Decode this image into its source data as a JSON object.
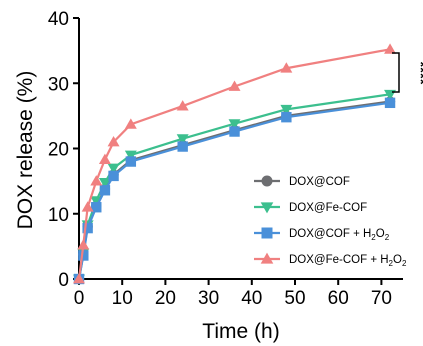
{
  "chart_data": {
    "type": "line",
    "xlabel": "Time (h)",
    "ylabel": "DOX release (%)",
    "xlim": [
      0,
      75
    ],
    "ylim": [
      0,
      40
    ],
    "xticks": [
      0,
      10,
      20,
      30,
      40,
      50,
      60,
      70
    ],
    "yticks": [
      0,
      10,
      20,
      30,
      40
    ],
    "grid": false,
    "legend_position": "bottom-right",
    "x": [
      0,
      1,
      2,
      4,
      6,
      8,
      12,
      24,
      36,
      48,
      72
    ],
    "series": [
      {
        "name": "DOX@COF",
        "color": "#6d6e71",
        "marker": "circle",
        "values": [
          0,
          3.8,
          8.0,
          11.2,
          13.8,
          16.0,
          18.2,
          20.5,
          22.8,
          25.0,
          27.2
        ]
      },
      {
        "name": "DOX@Fe-COF",
        "color": "#3cbf8e",
        "marker": "triangle-down",
        "values": [
          0,
          4.0,
          8.3,
          12.0,
          14.8,
          17.0,
          19.0,
          21.5,
          23.8,
          26.0,
          28.3
        ]
      },
      {
        "name": "DOX@COF + H2O2",
        "legend_base": "DOX@COF + H",
        "legend_sub": "2",
        "legend_mid": "O",
        "legend_sub2": "2",
        "color": "#4a90d9",
        "marker": "square",
        "values": [
          0,
          3.6,
          7.8,
          11.0,
          13.6,
          15.8,
          18.0,
          20.3,
          22.6,
          24.8,
          27.0
        ]
      },
      {
        "name": "DOX@Fe-COF + H2O2",
        "legend_base": "DOX@Fe-COF + H",
        "legend_sub": "2",
        "legend_mid": "O",
        "legend_sub2": "2",
        "color": "#f08080",
        "marker": "triangle-up",
        "values": [
          0,
          5.2,
          11.0,
          15.0,
          18.3,
          21.0,
          23.7,
          26.5,
          29.5,
          32.3,
          35.2
        ]
      }
    ],
    "annotation": "****"
  }
}
